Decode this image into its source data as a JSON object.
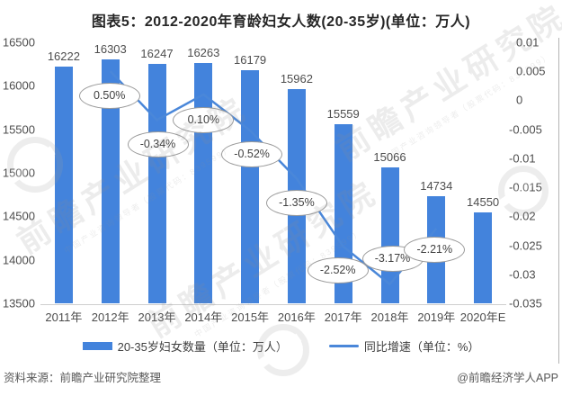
{
  "title": "图表5：2012-2020年育龄妇女人数(20-35岁)(单位：万人)",
  "chart_data": {
    "type": "bar+line combo",
    "categories": [
      "2011年",
      "2012年",
      "2013年",
      "2014年",
      "2015年",
      "2016年",
      "2017年",
      "2018年",
      "2019年",
      "2020年E"
    ],
    "series": [
      {
        "name": "20-35岁妇女数量（单位：万人）",
        "type": "bar",
        "axis": "left",
        "color": "#4383dc",
        "values": [
          16222,
          16303,
          16247,
          16263,
          16179,
          15962,
          15559,
          15066,
          14734,
          14550
        ]
      },
      {
        "name": "同比增速（单位：%）",
        "type": "line",
        "axis": "right",
        "color": "#4a87d9",
        "start_category_index": 1,
        "values": [
          0.005,
          -0.0034,
          0.001,
          -0.0052,
          -0.0135,
          -0.0252,
          -0.0317,
          -0.0221
        ],
        "point_labels": [
          "0.50%",
          "-0.34%",
          "0.10%",
          "-0.52%",
          "-1.35%",
          "-2.52%",
          "-3.17%",
          "-2.21%"
        ],
        "label_offsets": [
          [
            -2,
            27
          ],
          [
            0,
            27
          ],
          [
            -1,
            28
          ],
          [
            1,
            27
          ],
          [
            -1,
            27
          ],
          [
            -7,
            27
          ],
          [
            2,
            -28
          ],
          [
            -3,
            24
          ]
        ]
      }
    ],
    "left_axis": {
      "min": 13500,
      "max": 16500,
      "ticks": [
        "16500",
        "16000",
        "15500",
        "15000",
        "14500",
        "14000",
        "13500"
      ]
    },
    "right_axis": {
      "min": -0.035,
      "max": 0.01,
      "ticks": [
        "0.01",
        "0.005",
        "0",
        "-0.005",
        "-0.01",
        "-0.015",
        "-0.02",
        "-0.025",
        "-0.03",
        "-0.035"
      ]
    },
    "grid": "off",
    "legend_position": "bottom"
  },
  "legend": [
    {
      "label": "20-35岁妇女数量（单位：万人）",
      "type": "bar"
    },
    {
      "label": "同比增速（单位：%）",
      "type": "line"
    }
  ],
  "footer": {
    "source": "资料来源：前瞻产业研究院整理",
    "credit": "@前瞻经济学人APP"
  },
  "watermark": {
    "big": "前瞻产业研究院",
    "small": "中国产业咨询领导者（股票代码：839599）"
  },
  "colors": {
    "bar": "#4383dc",
    "line": "#4a87d9",
    "axis_text": "#4d4d4d",
    "callout_border": "#9b9b9b",
    "axis_line": "#cfcfcf"
  }
}
